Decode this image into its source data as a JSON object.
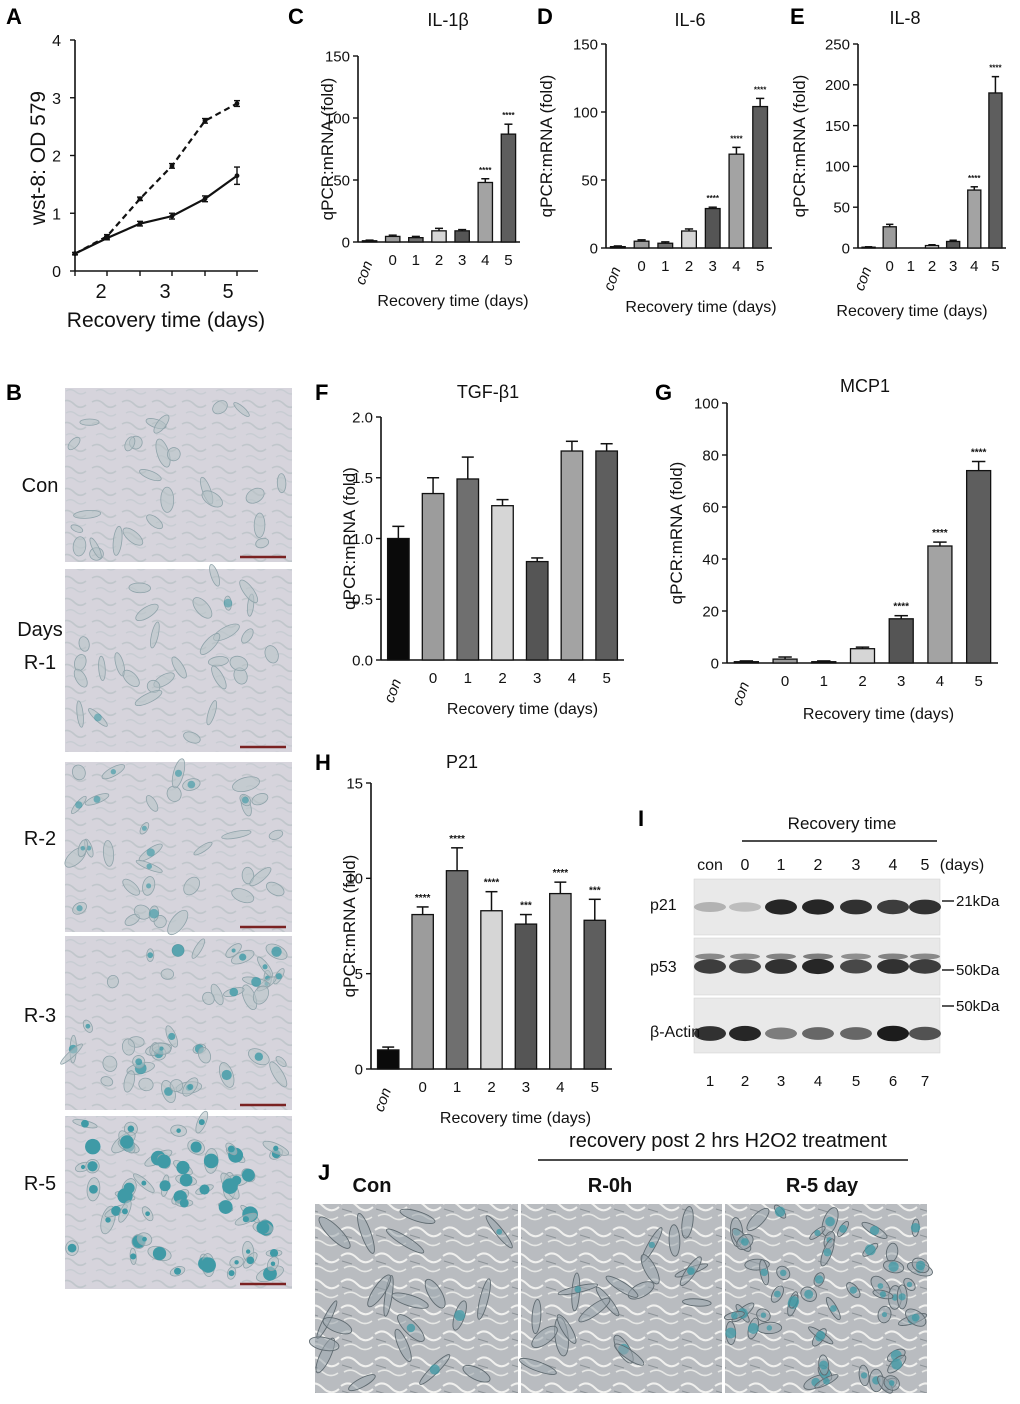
{
  "colors": {
    "con": "#0a0a0a",
    "d0": "#9c9c9c",
    "d1": "#6f6f6f",
    "d2": "#d6d6d6",
    "d3": "#555555",
    "d4": "#a3a3a3",
    "d5": "#5e5e5e",
    "micro_bg": "#d9d6de",
    "micro_cell": "#b6c2c6",
    "stain": "#3f9aa6",
    "blot_bg": "#e9e9e9"
  },
  "panelA": {
    "letter": "A",
    "chart_data": {
      "type": "line",
      "ylabel": "wst-8: OD 579",
      "xlabel": "Recovery time (days)",
      "x_ticks": [
        "2",
        "3",
        "5"
      ],
      "y_ticks": [
        "0",
        "1",
        "2",
        "3",
        "4"
      ],
      "ylim": [
        0,
        4
      ],
      "series": [
        {
          "values": [
            0.3,
            0.6,
            1.25,
            1.82,
            2.6,
            2.9
          ],
          "dashed": true
        },
        {
          "values": [
            0.3,
            0.57,
            0.82,
            0.95,
            1.25,
            1.65
          ],
          "dashed": false
        }
      ],
      "errors": [
        [
          0.02,
          0.03,
          0.03,
          0.04,
          0.04,
          0.05
        ],
        [
          0.02,
          0.03,
          0.04,
          0.05,
          0.05,
          0.15
        ]
      ]
    }
  },
  "panelC": {
    "letter": "C",
    "chart_data": {
      "type": "bar",
      "title": "IL-1β",
      "ylabel": "qPCR:mRNA (fold)",
      "xlabel": "Recovery time (days)",
      "categories": [
        "con",
        "0",
        "1",
        "2",
        "3",
        "4",
        "5"
      ],
      "values": [
        1,
        4.5,
        3.5,
        9,
        9,
        48,
        87
      ],
      "errors": [
        0.5,
        1,
        1,
        2,
        1,
        3,
        8
      ],
      "sig": [
        "",
        "",
        "",
        "",
        "",
        "****",
        "****"
      ],
      "ylim": [
        0,
        150
      ],
      "y_ticks": [
        "0",
        "50",
        "100",
        "150"
      ]
    }
  },
  "panelD": {
    "letter": "D",
    "chart_data": {
      "type": "bar",
      "title": "IL-6",
      "ylabel": "qPCR:mRNA (fold)",
      "xlabel": "Recovery time (days)",
      "categories": [
        "con",
        "0",
        "1",
        "2",
        "3",
        "4",
        "5"
      ],
      "values": [
        1,
        5,
        3.5,
        12.5,
        29,
        69,
        104
      ],
      "errors": [
        0.5,
        1,
        1,
        1.5,
        1,
        5,
        6
      ],
      "sig": [
        "",
        "",
        "",
        "",
        "****",
        "****",
        "****"
      ],
      "ylim": [
        0,
        150
      ],
      "y_ticks": [
        "0",
        "50",
        "100",
        "150"
      ]
    }
  },
  "panelE": {
    "letter": "E",
    "chart_data": {
      "type": "bar",
      "title": "IL-8",
      "ylabel": "qPCR:mRNA (fold)",
      "xlabel": "Recovery time (days)",
      "categories": [
        "con",
        "0",
        "1",
        "2",
        "3",
        "4",
        "5"
      ],
      "values": [
        1,
        26,
        0,
        3,
        8,
        71,
        190
      ],
      "errors": [
        0.5,
        3,
        0,
        1,
        1.5,
        4,
        20
      ],
      "sig": [
        "",
        "",
        "",
        "",
        "",
        "****",
        "****"
      ],
      "ylim": [
        0,
        250
      ],
      "y_ticks": [
        "0",
        "50",
        "100",
        "150",
        "200",
        "250"
      ]
    }
  },
  "panelF": {
    "letter": "F",
    "chart_data": {
      "type": "bar",
      "title": "TGF-β1",
      "ylabel": "qPCR:mRNA (fold)",
      "xlabel": "Recovery time (days)",
      "categories": [
        "con",
        "0",
        "1",
        "2",
        "3",
        "4",
        "5"
      ],
      "values": [
        1.0,
        1.37,
        1.49,
        1.27,
        0.81,
        1.72,
        1.72
      ],
      "errors": [
        0.1,
        0.13,
        0.18,
        0.05,
        0.03,
        0.08,
        0.06
      ],
      "sig": [
        "",
        "",
        "",
        "",
        "",
        "",
        ""
      ],
      "ylim": [
        0,
        2.0
      ],
      "y_ticks": [
        "0.0",
        "0.5",
        "1.0",
        "1.5",
        "2.0"
      ]
    }
  },
  "panelG": {
    "letter": "G",
    "chart_data": {
      "type": "bar",
      "title": "MCP1",
      "ylabel": "qPCR:mRNA (fold)",
      "xlabel": "Recovery time (days)",
      "categories": [
        "con",
        "0",
        "1",
        "2",
        "3",
        "4",
        "5"
      ],
      "values": [
        0.5,
        1.5,
        0.5,
        5.5,
        17,
        45,
        74
      ],
      "errors": [
        0.3,
        0.8,
        0.3,
        0.6,
        1.2,
        1.5,
        3.5
      ],
      "sig": [
        "",
        "",
        "",
        "",
        "****",
        "****",
        "****"
      ],
      "ylim": [
        0,
        100
      ],
      "y_ticks": [
        "0",
        "20",
        "40",
        "60",
        "80",
        "100"
      ]
    }
  },
  "panelH": {
    "letter": "H",
    "chart_data": {
      "type": "bar",
      "title": "P21",
      "ylabel": "qPCR:mRNA (fold)",
      "xlabel": "Recovery time (days)",
      "categories": [
        "con",
        "0",
        "1",
        "2",
        "3",
        "4",
        "5"
      ],
      "values": [
        1.0,
        8.1,
        10.4,
        8.3,
        7.6,
        9.2,
        7.8
      ],
      "errors": [
        0.15,
        0.4,
        1.2,
        1.0,
        0.5,
        0.6,
        1.1
      ],
      "sig": [
        "",
        "****",
        "****",
        "****",
        "***",
        "****",
        "***"
      ],
      "ylim": [
        0,
        15
      ],
      "y_ticks": [
        "0",
        "5",
        "10",
        "15"
      ]
    }
  },
  "panelB": {
    "letter": "B",
    "labels": [
      "Con",
      "Days",
      "R-1",
      "R-2",
      "R-3",
      "R-5"
    ],
    "stain_levels": [
      0.0,
      0.12,
      0.3,
      0.6,
      1.0
    ]
  },
  "panelI": {
    "letter": "I",
    "header": "Recovery time",
    "lane_labels": [
      "con",
      "0",
      "1",
      "2",
      "3",
      "4",
      "5"
    ],
    "days_label": "(days)",
    "rows": [
      "p21",
      "p53",
      "β-Actin"
    ],
    "markers": [
      "21kDa",
      "50kDa",
      "50kDa"
    ],
    "lane_numbers": [
      "1",
      "2",
      "3",
      "4",
      "5",
      "6",
      "7"
    ],
    "p21_intensity": [
      0.25,
      0.2,
      0.9,
      0.9,
      0.85,
      0.8,
      0.85
    ],
    "p53_intensity": [
      0.8,
      0.75,
      0.85,
      0.9,
      0.75,
      0.85,
      0.8
    ],
    "actin_intensity": [
      0.85,
      0.9,
      0.5,
      0.6,
      0.6,
      0.95,
      0.7
    ]
  },
  "panelJ": {
    "letter": "J",
    "header": "recovery post 2 hrs H2O2 treatment",
    "labels": [
      "Con",
      "R-0h",
      "R-5 day"
    ],
    "stain_levels": [
      0.1,
      0.2,
      0.9
    ]
  }
}
